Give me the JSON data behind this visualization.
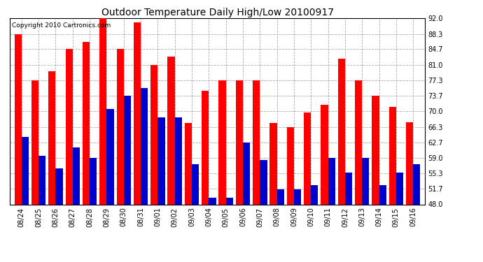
{
  "title": "Outdoor Temperature Daily High/Low 20100917",
  "copyright": "Copyright 2010 Cartronics.com",
  "dates": [
    "08/24",
    "08/25",
    "08/26",
    "08/27",
    "08/28",
    "08/29",
    "08/30",
    "08/31",
    "09/01",
    "09/02",
    "09/03",
    "09/04",
    "09/05",
    "09/06",
    "09/07",
    "09/08",
    "09/09",
    "09/10",
    "09/11",
    "09/12",
    "09/13",
    "09/14",
    "09/15",
    "09/16"
  ],
  "highs": [
    88.3,
    77.3,
    79.5,
    84.7,
    86.5,
    92.0,
    84.7,
    91.0,
    81.0,
    83.0,
    67.3,
    74.8,
    77.3,
    77.3,
    77.3,
    67.3,
    66.3,
    69.8,
    71.5,
    82.5,
    77.3,
    73.7,
    71.0,
    67.5
  ],
  "lows": [
    64.0,
    59.5,
    56.5,
    61.5,
    59.0,
    70.5,
    73.7,
    75.5,
    68.5,
    68.5,
    57.5,
    49.5,
    49.5,
    62.7,
    58.5,
    51.5,
    51.5,
    52.5,
    59.0,
    55.5,
    59.0,
    52.5,
    55.5,
    57.5
  ],
  "high_color": "#ff0000",
  "low_color": "#0000cc",
  "ylim_min": 48.0,
  "ylim_max": 92.0,
  "yticks": [
    48.0,
    51.7,
    55.3,
    59.0,
    62.7,
    66.3,
    70.0,
    73.7,
    77.3,
    81.0,
    84.7,
    88.3,
    92.0
  ],
  "grid_color": "#aaaaaa",
  "background_color": "#ffffff",
  "bar_width": 0.42,
  "title_fontsize": 10,
  "tick_fontsize": 7,
  "copyright_fontsize": 6.5
}
